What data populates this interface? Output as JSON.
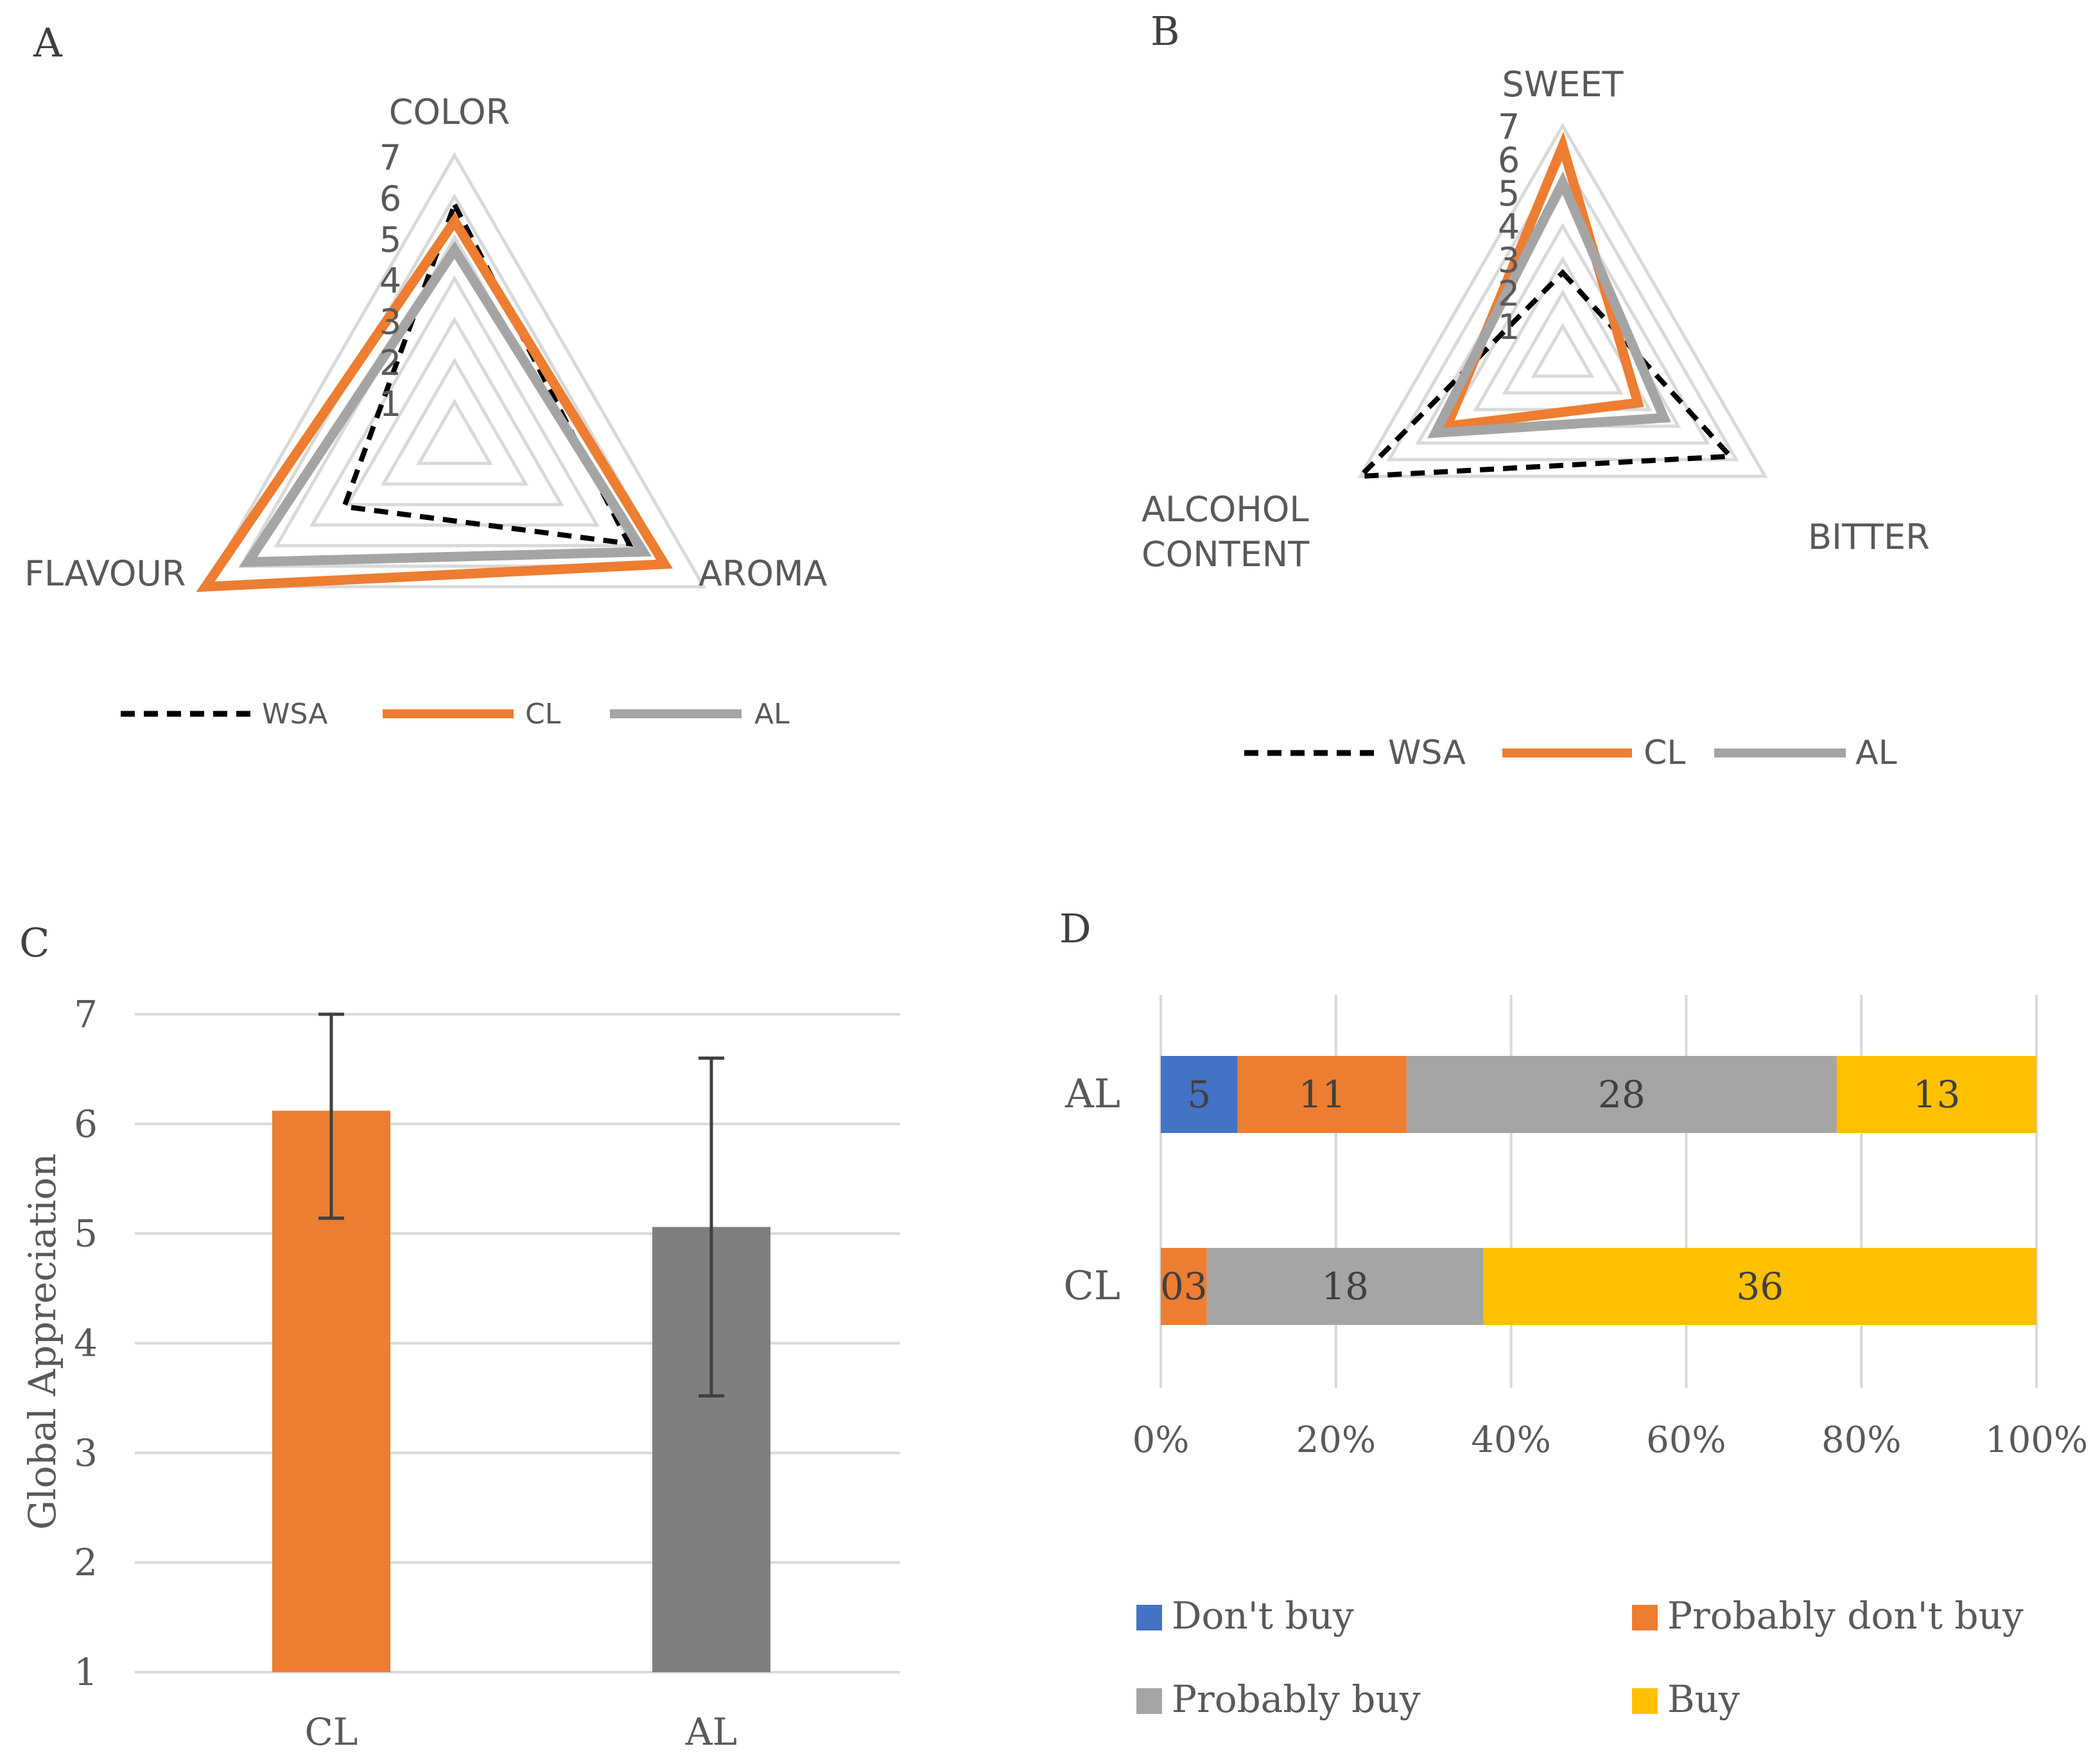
{
  "colors": {
    "wsa": "#000000",
    "cl": "#ED7D31",
    "al": "#A5A5A5",
    "al_bar": "#7F7F7F",
    "grid": "#D9D9D9",
    "dont_buy": "#4472C4",
    "prob_dont_buy": "#ED7D31",
    "prob_buy": "#A5A5A5",
    "buy": "#FFC000"
  },
  "chart_data": [
    {
      "panel": "A",
      "type": "radar",
      "axes": [
        "COLOR",
        "AROMA",
        "FLAVOUR"
      ],
      "ticks": [
        "1",
        "2",
        "3",
        "4",
        "5",
        "6",
        "7"
      ],
      "range": [
        0,
        7
      ],
      "series": [
        {
          "name": "WSA",
          "values": [
            5.8,
            4.9,
            3.1
          ]
        },
        {
          "name": "CL",
          "values": [
            5.4,
            5.9,
            7.0
          ]
        },
        {
          "name": "AL",
          "values": [
            4.7,
            5.3,
            5.8
          ]
        }
      ]
    },
    {
      "panel": "B",
      "type": "radar",
      "axes": [
        "SWEET",
        "BITTER",
        "ALCOHOL CONTENT"
      ],
      "axis_label_lines": [
        [
          "SWEET"
        ],
        [
          "BITTER"
        ],
        [
          "ALCOHOL",
          "CONTENT"
        ]
      ],
      "ticks": [
        "1",
        "2",
        "3",
        "4",
        "5",
        "6",
        "7"
      ],
      "range": [
        0,
        7
      ],
      "series": [
        {
          "name": "WSA",
          "values": [
            2.6,
            5.8,
            7.0
          ]
        },
        {
          "name": "CL",
          "values": [
            6.4,
            2.6,
            4.0
          ]
        },
        {
          "name": "AL",
          "values": [
            5.3,
            3.5,
            4.4
          ]
        }
      ]
    },
    {
      "panel": "C",
      "type": "bar",
      "categories": [
        "CL",
        "AL"
      ],
      "values": [
        6.12,
        5.06
      ],
      "error": [
        [
          5.14,
          7.0
        ],
        [
          3.52,
          6.6
        ]
      ],
      "ylabel": "Global Appreciation",
      "ylim": [
        1,
        7
      ],
      "yticks": [
        "1",
        "2",
        "3",
        "4",
        "5",
        "6",
        "7"
      ]
    },
    {
      "panel": "D",
      "type": "stacked-bar-100",
      "categories": [
        "AL",
        "CL"
      ],
      "series": [
        {
          "name": "Don't buy",
          "values": [
            5,
            0
          ],
          "labels": [
            "5",
            ""
          ]
        },
        {
          "name": "Probably don't buy",
          "values": [
            11,
            3
          ],
          "labels": [
            "11",
            "03"
          ]
        },
        {
          "name": "Probably buy",
          "values": [
            28,
            18
          ],
          "labels": [
            "28",
            "18"
          ]
        },
        {
          "name": "Buy",
          "values": [
            13,
            36
          ],
          "labels": [
            "13",
            "36"
          ]
        }
      ],
      "xticks": [
        "0%",
        "20%",
        "40%",
        "60%",
        "80%",
        "100%"
      ]
    }
  ],
  "panels": {
    "a": {
      "letter": "A",
      "legend": [
        "WSA",
        "CL",
        "AL"
      ]
    },
    "b": {
      "letter": "B",
      "legend": [
        "WSA",
        "CL",
        "AL"
      ]
    },
    "c": {
      "letter": "C"
    },
    "d": {
      "letter": "D",
      "legend": [
        "Don't buy",
        "Probably don't buy",
        "Probably buy",
        "Buy"
      ]
    }
  }
}
